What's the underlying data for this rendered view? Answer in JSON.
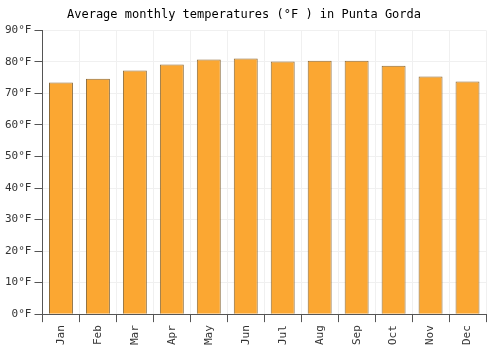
{
  "chart_data": {
    "type": "bar",
    "title": "Average monthly temperatures (°F ) in Punta Gorda",
    "categories": [
      "Jan",
      "Feb",
      "Mar",
      "Apr",
      "May",
      "Jun",
      "Jul",
      "Aug",
      "Sep",
      "Oct",
      "Nov",
      "Dec"
    ],
    "values": [
      73.5,
      74.7,
      77.3,
      79.2,
      80.8,
      81.1,
      80.1,
      80.4,
      80.4,
      78.8,
      75.4,
      73.8
    ],
    "color": "#fba732",
    "ylim": [
      0,
      90
    ],
    "yticks": [
      {
        "value": 0,
        "label": "0°F"
      },
      {
        "value": 10,
        "label": "10°F"
      },
      {
        "value": 20,
        "label": "20°F"
      },
      {
        "value": 30,
        "label": "30°F"
      },
      {
        "value": 40,
        "label": "40°F"
      },
      {
        "value": 50,
        "label": "50°F"
      },
      {
        "value": 60,
        "label": "60°F"
      },
      {
        "value": 70,
        "label": "70°F"
      },
      {
        "value": 80,
        "label": "80°F"
      },
      {
        "value": 90,
        "label": "90°F"
      }
    ],
    "grid": true
  }
}
